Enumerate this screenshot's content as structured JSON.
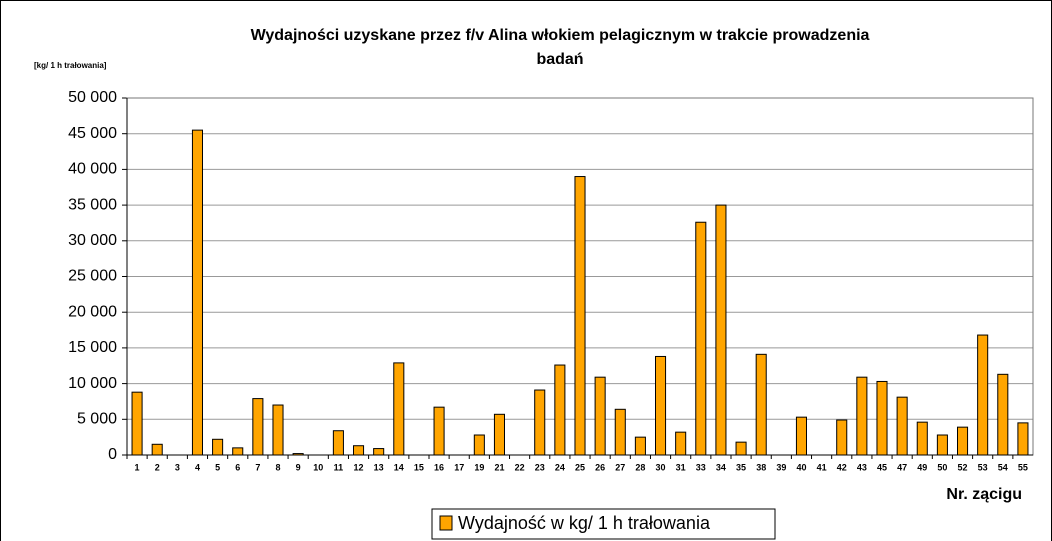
{
  "chart_data": {
    "type": "bar",
    "title": [
      "Wydajności uzyskane przez f/v Alina  włokiem pelagicznym w trakcie  prowadzenia",
      "badań"
    ],
    "y_axis_label": "[kg/ 1 h trałowania]",
    "x_axis_label": "Nr. zącigu",
    "categories": [
      "1",
      "2",
      "3",
      "4",
      "5",
      "6",
      "7",
      "8",
      "9",
      "10",
      "11",
      "12",
      "13",
      "14",
      "15",
      "16",
      "17",
      "19",
      "21",
      "22",
      "23",
      "24",
      "25",
      "26",
      "27",
      "28",
      "30",
      "31",
      "33",
      "34",
      "35",
      "38",
      "39",
      "40",
      "41",
      "42",
      "43",
      "45",
      "47",
      "49",
      "50",
      "52",
      "53",
      "54",
      "55"
    ],
    "series": [
      {
        "name": "Wydajność w kg/ 1 h trałowania",
        "color": "#ffa500",
        "values": [
          8800,
          1500,
          0,
          45500,
          2200,
          1000,
          7900,
          7000,
          200,
          0,
          3400,
          1300,
          900,
          12900,
          0,
          6700,
          0,
          2800,
          5700,
          0,
          9100,
          12600,
          39000,
          10900,
          6400,
          2500,
          13800,
          3200,
          32600,
          35000,
          1800,
          14100,
          0,
          5300,
          0,
          4900,
          10900,
          10300,
          8100,
          4600,
          2800,
          3900,
          16800,
          11300,
          4500
        ]
      }
    ],
    "ylim": [
      0,
      50000
    ],
    "yticks": [
      0,
      {
        "value": 5000,
        "label": "5 000"
      },
      {
        "value": 10000,
        "label": "10 000"
      },
      {
        "value": 15000,
        "label": "15 000"
      },
      {
        "value": 20000,
        "label": "20 000"
      },
      {
        "value": 25000,
        "label": "25 000"
      },
      {
        "value": 30000,
        "label": "30 000"
      },
      {
        "value": 35000,
        "label": "35 000"
      },
      {
        "value": 40000,
        "label": "40 000"
      },
      {
        "value": 45000,
        "label": "45 000"
      },
      {
        "value": 50000,
        "label": "50 000"
      }
    ],
    "grid": true
  }
}
